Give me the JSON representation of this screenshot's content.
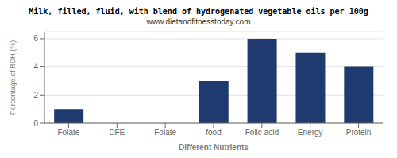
{
  "chart_data": {
    "type": "bar",
    "title": "Milk, filled, fluid, with blend of hydrogenated vegetable oils per 100g",
    "subtitle": "www.dietandfitnesstoday.com",
    "categories": [
      "Folate",
      "DFE",
      "Folate",
      "food",
      "Folic acid",
      "Energy",
      "Protein"
    ],
    "values": [
      1.0,
      0.0,
      0.0,
      3.0,
      6.0,
      5.0,
      4.0
    ],
    "color": "#1F3A6E",
    "xlabel": "Different Nutrients",
    "ylabel": "Percentage of RDH (%)",
    "ylim": [
      0,
      6.5
    ],
    "yticks": [
      0,
      2,
      4,
      6
    ],
    "grid": true
  }
}
